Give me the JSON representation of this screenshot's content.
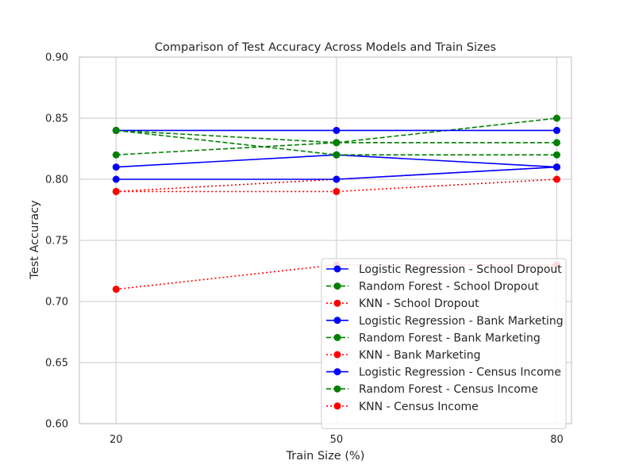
{
  "chart_data": {
    "type": "line",
    "title": "Comparison of Test Accuracy Across Models and Train Sizes",
    "xlabel": "Train Size (%)",
    "ylabel": "Test Accuracy",
    "x": [
      20,
      50,
      80
    ],
    "xticks": [
      "20",
      "50",
      "80"
    ],
    "yticks": [
      "0.60",
      "0.65",
      "0.70",
      "0.75",
      "0.80",
      "0.85",
      "0.90"
    ],
    "xlim": [
      15,
      82
    ],
    "ylim": [
      0.6,
      0.9
    ],
    "grid": true,
    "legend_position": "lower-right",
    "series": [
      {
        "name": "Logistic Regression - School Dropout",
        "values": [
          0.81,
          0.82,
          0.81
        ],
        "color": "#0000ff",
        "linestyle": "solid"
      },
      {
        "name": "Random Forest - School Dropout",
        "values": [
          0.84,
          0.83,
          0.85
        ],
        "color": "#008000",
        "linestyle": "dashed"
      },
      {
        "name": "KNN - School Dropout",
        "values": [
          0.79,
          0.8,
          0.81
        ],
        "color": "#ff0000",
        "linestyle": "dotted"
      },
      {
        "name": "Logistic Regression - Bank Marketing",
        "values": [
          0.8,
          0.8,
          0.81
        ],
        "color": "#0000ff",
        "linestyle": "solid"
      },
      {
        "name": "Random Forest - Bank Marketing",
        "values": [
          0.82,
          0.83,
          0.83
        ],
        "color": "#008000",
        "linestyle": "dashed"
      },
      {
        "name": "KNN - Bank Marketing",
        "values": [
          0.79,
          0.79,
          0.8
        ],
        "color": "#ff0000",
        "linestyle": "dotted"
      },
      {
        "name": "Logistic Regression - Census Income",
        "values": [
          0.84,
          0.84,
          0.84
        ],
        "color": "#0000ff",
        "linestyle": "solid"
      },
      {
        "name": "Random Forest - Census Income",
        "values": [
          0.84,
          0.82,
          0.82
        ],
        "color": "#008000",
        "linestyle": "dashed"
      },
      {
        "name": "KNN - Census Income",
        "values": [
          0.71,
          0.73,
          0.73
        ],
        "color": "#ff0000",
        "linestyle": "dotted"
      }
    ]
  }
}
